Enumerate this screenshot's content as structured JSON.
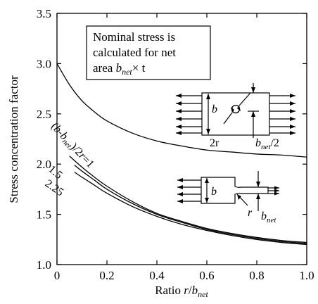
{
  "chart_data": {
    "type": "line",
    "xlabel": {
      "prefix": "Ratio ",
      "var": "r",
      "sep": "/",
      "sym": "b",
      "sub": "net"
    },
    "ylabel": "Stress concentration factor",
    "xlim": [
      0,
      1.0
    ],
    "ylim": [
      1.0,
      3.5
    ],
    "xticks": [
      "0",
      "0.2",
      "0.4",
      "0.6",
      "0.8",
      "1.0"
    ],
    "yticks": [
      "1.0",
      "1.5",
      "2.0",
      "2.5",
      "3.0",
      "3.5"
    ],
    "grid": false,
    "annotation": {
      "line1": "Nominal stress is",
      "line2": "calculated for net",
      "line3_prefix": "area ",
      "line3_sym": "b",
      "line3_sub": "net",
      "line3_suffix": "× t"
    },
    "series": [
      {
        "id": "hole",
        "x": [
          0,
          0.05,
          0.1,
          0.15,
          0.2,
          0.3,
          0.4,
          0.5,
          0.6,
          0.7,
          0.8,
          0.9,
          1.0
        ],
        "values": [
          3.0,
          2.79,
          2.63,
          2.52,
          2.43,
          2.31,
          2.23,
          2.18,
          2.14,
          2.12,
          2.1,
          2.09,
          2.07
        ]
      },
      {
        "id": "ratio-1",
        "x": [
          0.05,
          0.1,
          0.15,
          0.2,
          0.3,
          0.4,
          0.5,
          0.6,
          0.7,
          0.8,
          0.9,
          1.0
        ],
        "values": [
          2.08,
          1.97,
          1.87,
          1.78,
          1.63,
          1.51,
          1.43,
          1.36,
          1.31,
          1.27,
          1.24,
          1.22
        ]
      },
      {
        "id": "ratio-1.5",
        "x": [
          0.07,
          0.1,
          0.15,
          0.2,
          0.3,
          0.4,
          0.5,
          0.6,
          0.7,
          0.8,
          0.9,
          1.0
        ],
        "values": [
          1.99,
          1.93,
          1.84,
          1.75,
          1.61,
          1.5,
          1.42,
          1.35,
          1.3,
          1.26,
          1.23,
          1.21
        ]
      },
      {
        "id": "ratio-2.25",
        "x": [
          0.07,
          0.1,
          0.15,
          0.2,
          0.3,
          0.4,
          0.5,
          0.6,
          0.7,
          0.8,
          0.9,
          1.0
        ],
        "values": [
          1.92,
          1.87,
          1.79,
          1.71,
          1.58,
          1.48,
          1.4,
          1.34,
          1.29,
          1.25,
          1.22,
          1.2
        ]
      }
    ],
    "curve_labels": {
      "ratio_1": {
        "open": "(",
        "b": "b",
        "dash": "-",
        "b2": "b",
        "sub": "net",
        "close": ")/2",
        "r": "r",
        "eq": "=1"
      },
      "ratio_15": "1.5",
      "ratio_225": "2.25"
    },
    "diagram_hole": {
      "b": "b",
      "two_r": "2r",
      "bnet_sym": "b",
      "bnet_sub": "net",
      "bnet_suffix": "/2"
    },
    "diagram_fillet": {
      "b": "b",
      "r": "r",
      "bnet_sym": "b",
      "bnet_sub": "net"
    }
  }
}
